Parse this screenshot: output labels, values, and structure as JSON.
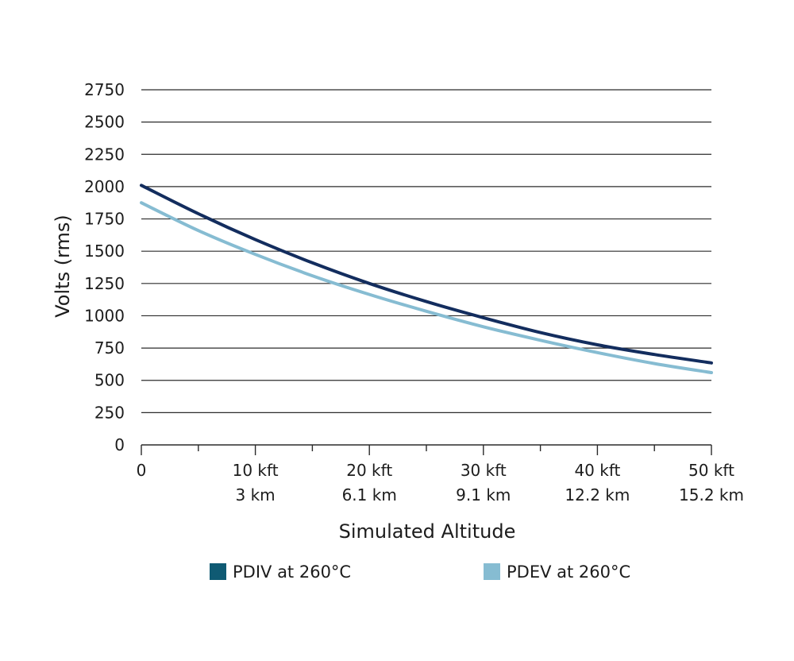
{
  "chart_data": {
    "type": "line",
    "xlabel": "Simulated Altitude",
    "ylabel": "Volts (rms)",
    "xlim": [
      0,
      50
    ],
    "ylim": [
      0,
      2750
    ],
    "grid": "horizontal",
    "legend_position": "bottom",
    "y_ticks": [
      "0",
      "250",
      "500",
      "750",
      "1000",
      "1250",
      "1500",
      "1750",
      "2000",
      "2250",
      "2500",
      "2750"
    ],
    "x_ticks": [
      {
        "value": 0,
        "line1": "0",
        "line2": ""
      },
      {
        "value": 10,
        "line1": "10 kft",
        "line2": "3 km"
      },
      {
        "value": 20,
        "line1": "20 kft",
        "line2": "6.1 km"
      },
      {
        "value": 30,
        "line1": "30 kft",
        "line2": "9.1 km"
      },
      {
        "value": 40,
        "line1": "40 kft",
        "line2": "12.2 km"
      },
      {
        "value": 50,
        "line1": "50 kft",
        "line2": "15.2 km"
      }
    ],
    "x": [
      0,
      5,
      10,
      15,
      20,
      25,
      30,
      35,
      40,
      45,
      50
    ],
    "series": [
      {
        "name": "PDIV at 260°C",
        "legend_color": "#0f5a73",
        "line_color": "#132d5e",
        "values": [
          2010,
          1790,
          1590,
          1410,
          1250,
          1110,
          985,
          870,
          775,
          700,
          635
        ]
      },
      {
        "name": "PDEV at 260°C",
        "legend_color": "#86bcd2",
        "line_color": "#86bcd2",
        "values": [
          1875,
          1660,
          1475,
          1310,
          1165,
          1035,
          915,
          810,
          715,
          630,
          560
        ]
      }
    ]
  }
}
